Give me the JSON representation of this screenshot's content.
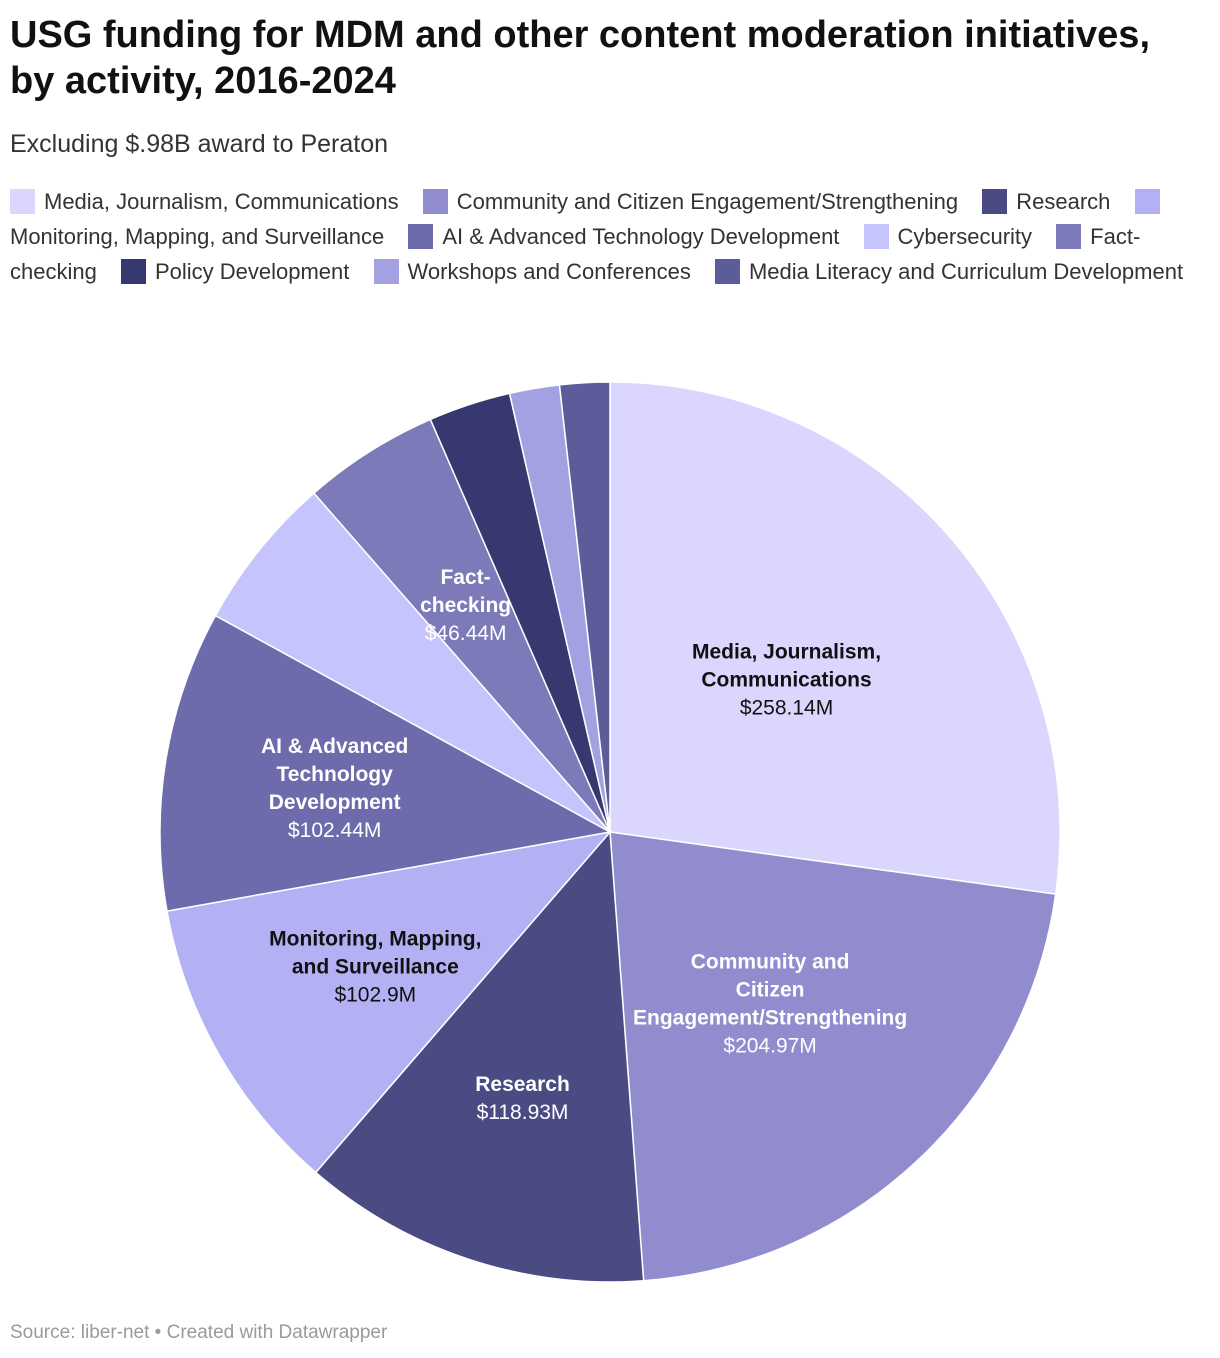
{
  "title": "USG funding for MDM and other content moderation initiatives, by activity, 2016-2024",
  "subtitle": "Excluding $.98B award to Peraton",
  "footer": {
    "source": "Source: liber-net • Created with Datawrapper"
  },
  "chart_data": {
    "type": "pie",
    "title": "USG funding for MDM and other content moderation initiatives, by activity, 2016-2024",
    "unit": "USD millions",
    "series": [
      {
        "name": "Media, Journalism, Communications",
        "value": 258.14,
        "display": "$258.14M",
        "color": "#dad6fe",
        "label_color": "#111111",
        "label_lines": [
          "Media, Journalism,",
          "Communications"
        ]
      },
      {
        "name": "Community and Citizen Engagement/Strengthening",
        "value": 204.97,
        "display": "$204.97M",
        "color": "#908ccd",
        "label_color": "#ffffff",
        "label_lines": [
          "Community and",
          "Citizen",
          "Engagement/Strengthening"
        ]
      },
      {
        "name": "Research",
        "value": 118.93,
        "display": "$118.93M",
        "color": "#4b4b84",
        "label_color": "#ffffff",
        "label_lines": [
          "Research"
        ]
      },
      {
        "name": "Monitoring, Mapping, and Surveillance",
        "value": 102.9,
        "display": "$102.9M",
        "color": "#b3b0f4",
        "label_color": "#111111",
        "label_lines": [
          "Monitoring, Mapping,",
          "and Surveillance"
        ]
      },
      {
        "name": "AI & Advanced Technology Development",
        "value": 102.44,
        "display": "$102.44M",
        "color": "#6d6bab",
        "label_color": "#ffffff",
        "label_lines": [
          "AI & Advanced",
          "Technology",
          "Development"
        ]
      },
      {
        "name": "Cybersecurity",
        "value": 53.0,
        "display": "",
        "color": "#c6c4fc",
        "label_color": "#111111",
        "label_lines": []
      },
      {
        "name": "Fact-checking",
        "value": 46.44,
        "display": "$46.44M",
        "color": "#7c7ab8",
        "label_color": "#ffffff",
        "label_lines": [
          "Fact-",
          "checking"
        ]
      },
      {
        "name": "Policy Development",
        "value": 28.0,
        "display": "",
        "color": "#383870",
        "label_color": "#ffffff",
        "label_lines": []
      },
      {
        "name": "Workshops and Conferences",
        "value": 17.0,
        "display": "",
        "color": "#a3a1e1",
        "label_color": "#111111",
        "label_lines": []
      },
      {
        "name": "Media Literacy and Curriculum Development",
        "value": 17.0,
        "display": "",
        "color": "#5d5c9b",
        "label_color": "#ffffff",
        "label_lines": []
      }
    ]
  }
}
